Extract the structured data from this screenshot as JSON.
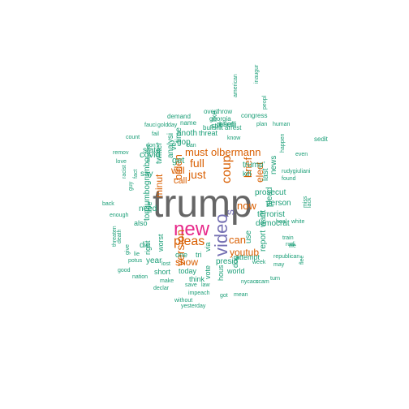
{
  "colors": {
    "background": "#ffffff",
    "teal": "#1b9e77",
    "orange": "#d95f02",
    "purple": "#7570b3",
    "magenta": "#e7298a",
    "gray": "#666666"
  },
  "words": [
    {
      "text": "trump",
      "color": "gray"
    },
    {
      "text": "new",
      "color": "magenta"
    },
    {
      "text": "video",
      "color": "purple"
    },
    {
      "text": "’s",
      "color": "purple"
    },
    {
      "text": "pleas",
      "color": "orange"
    },
    {
      "text": "version",
      "color": "orange"
    },
    {
      "text": "just",
      "color": "orange"
    },
    {
      "text": "coup",
      "color": "orange"
    },
    {
      "text": "full",
      "color": "orange"
    },
    {
      "text": "must",
      "color": "orange"
    },
    {
      "text": "olbermann",
      "color": "orange"
    },
    {
      "text": "show",
      "color": "orange"
    },
    {
      "text": "now",
      "color": "orange"
    },
    {
      "text": "can",
      "color": "orange"
    },
    {
      "text": "youtub",
      "color": "orange"
    },
    {
      "text": "will",
      "color": "orange"
    },
    {
      "text": "biden",
      "color": "orange"
    },
    {
      "text": "minut",
      "color": "orange"
    },
    {
      "text": "brief",
      "color": "orange"
    },
    {
      "text": "elect",
      "color": "orange"
    },
    {
      "text": "call",
      "color": "orange"
    },
    {
      "text": "get",
      "color": "teal"
    },
    {
      "text": "covid",
      "color": "teal"
    },
    {
      "text": "state",
      "color": "teal"
    },
    {
      "text": "say",
      "color": "teal"
    },
    {
      "text": "need",
      "color": "teal"
    },
    {
      "text": "also",
      "color": "teal"
    },
    {
      "text": "tomjumbogrumbo",
      "color": "teal"
    },
    {
      "text": "twitter",
      "color": "teal"
    },
    {
      "text": "analysi",
      "color": "teal"
    },
    {
      "text": "time",
      "color": "teal"
    },
    {
      "text": "anoth",
      "color": "teal"
    },
    {
      "text": "gop",
      "color": "teal"
    },
    {
      "text": "threat",
      "color": "teal"
    },
    {
      "text": "briefli",
      "color": "teal"
    },
    {
      "text": "rescu",
      "color": "teal"
    },
    {
      "text": "kill",
      "color": "teal"
    },
    {
      "text": "like",
      "color": "teal"
    },
    {
      "text": "still",
      "color": "teal"
    },
    {
      "text": "trump’",
      "color": "teal"
    },
    {
      "text": "news",
      "color": "teal"
    },
    {
      "text": "last",
      "color": "teal"
    },
    {
      "text": "prosecut",
      "color": "teal"
    },
    {
      "text": "person",
      "color": "teal"
    },
    {
      "text": "terrorist",
      "color": "teal"
    },
    {
      "text": "democrat",
      "color": "teal"
    },
    {
      "text": "want",
      "color": "teal"
    },
    {
      "text": "use",
      "color": "teal"
    },
    {
      "text": "report",
      "color": "teal"
    },
    {
      "text": "plead",
      "color": "teal"
    },
    {
      "text": "attempt",
      "color": "teal"
    },
    {
      "text": "world",
      "color": "teal"
    },
    {
      "text": "presid",
      "color": "teal"
    },
    {
      "text": "dog",
      "color": "teal"
    },
    {
      "text": "tri",
      "color": "teal"
    },
    {
      "text": "one",
      "color": "teal"
    },
    {
      "text": "today",
      "color": "teal"
    },
    {
      "text": "year",
      "color": "teal"
    },
    {
      "text": "die",
      "color": "teal"
    },
    {
      "text": "right",
      "color": "teal"
    },
    {
      "text": "worst",
      "color": "teal"
    },
    {
      "text": "short",
      "color": "teal"
    },
    {
      "text": "think",
      "color": "teal"
    },
    {
      "text": "vote",
      "color": "teal"
    },
    {
      "text": "via",
      "color": "teal"
    },
    {
      "text": "hous",
      "color": "teal"
    },
    {
      "text": "ve",
      "color": "teal"
    },
    {
      "text": "live",
      "color": "teal"
    },
    {
      "text": "sedit",
      "color": "teal"
    },
    {
      "text": "demand",
      "color": "teal"
    },
    {
      "text": "overthrow",
      "color": "teal"
    },
    {
      "text": "congress",
      "color": "teal"
    },
    {
      "text": "georgia",
      "color": "teal"
    },
    {
      "text": "name",
      "color": "teal"
    },
    {
      "text": "bullshit",
      "color": "teal"
    },
    {
      "text": "arrest",
      "color": "teal"
    },
    {
      "text": "fauci",
      "color": "teal"
    },
    {
      "text": "gold",
      "color": "teal"
    },
    {
      "text": "day",
      "color": "teal"
    },
    {
      "text": "fail",
      "color": "teal"
    },
    {
      "text": "ban",
      "color": "teal"
    },
    {
      "text": "don’t",
      "color": "teal"
    },
    {
      "text": "know",
      "color": "teal"
    },
    {
      "text": "even",
      "color": "teal"
    },
    {
      "text": "found",
      "color": "teal"
    },
    {
      "text": "rudygiuliani",
      "color": "teal"
    },
    {
      "text": "heal",
      "color": "teal"
    },
    {
      "text": "white",
      "color": "teal"
    },
    {
      "text": "train",
      "color": "teal"
    },
    {
      "text": "republican",
      "color": "teal"
    },
    {
      "text": "may",
      "color": "teal"
    },
    {
      "text": "week",
      "color": "teal"
    },
    {
      "text": "scam",
      "color": "teal"
    },
    {
      "text": "nycacc",
      "color": "teal"
    },
    {
      "text": "mean",
      "color": "teal"
    },
    {
      "text": "got",
      "color": "teal"
    },
    {
      "text": "impeach",
      "color": "teal"
    },
    {
      "text": "save",
      "color": "teal"
    },
    {
      "text": "law",
      "color": "teal"
    },
    {
      "text": "without",
      "color": "teal"
    },
    {
      "text": "yesterday",
      "color": "teal"
    },
    {
      "text": "declar",
      "color": "teal"
    },
    {
      "text": "make",
      "color": "teal"
    },
    {
      "text": "nation",
      "color": "teal"
    },
    {
      "text": "potus",
      "color": "teal"
    },
    {
      "text": "lost",
      "color": "teal"
    },
    {
      "text": "good",
      "color": "teal"
    },
    {
      "text": "back",
      "color": "teal"
    },
    {
      "text": "enough",
      "color": "teal"
    },
    {
      "text": "remov",
      "color": "teal"
    },
    {
      "text": "love",
      "color": "teal"
    },
    {
      "text": "count",
      "color": "teal"
    },
    {
      "text": "lie",
      "color": "teal"
    },
    {
      "text": "rudi",
      "color": "teal"
    },
    {
      "text": "turn",
      "color": "teal"
    },
    {
      "text": "life",
      "color": "teal"
    },
    {
      "text": "plan",
      "color": "teal"
    },
    {
      "text": "human",
      "color": "teal"
    },
    {
      "text": "american",
      "color": "teal"
    },
    {
      "text": "inaugur",
      "color": "teal"
    },
    {
      "text": "peopl",
      "color": "teal"
    },
    {
      "text": "happen",
      "color": "teal"
    },
    {
      "text": "miss",
      "color": "teal"
    },
    {
      "text": "racist",
      "color": "teal"
    },
    {
      "text": "fact",
      "color": "teal"
    },
    {
      "text": "guy",
      "color": "teal"
    },
    {
      "text": "murder",
      "color": "teal"
    },
    {
      "text": "give",
      "color": "teal"
    },
    {
      "text": "death",
      "color": "teal"
    },
    {
      "text": "threaten",
      "color": "teal"
    },
    {
      "text": "lack",
      "color": "teal"
    },
    {
      "text": "flee",
      "color": "teal"
    }
  ]
}
